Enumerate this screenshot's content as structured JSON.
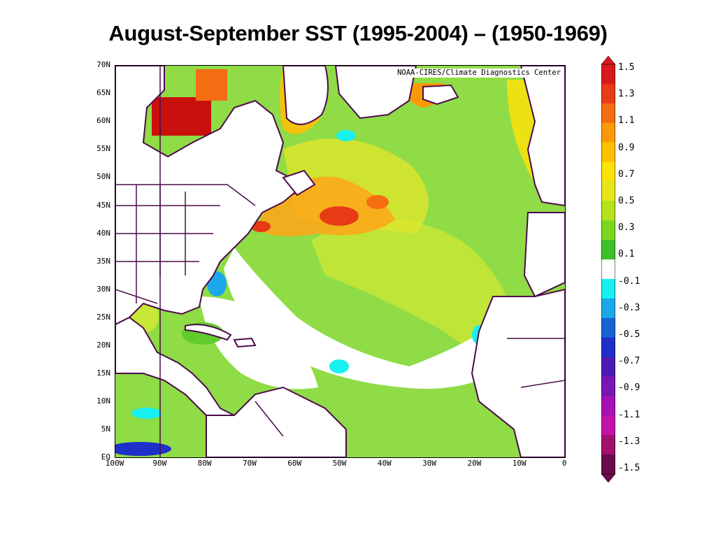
{
  "title": "August-September SST (1995-2004) – (1950-1969)",
  "credit": "NOAA-CIRES/Climate Diagnostics Center",
  "lat_labels": [
    "70N",
    "65N",
    "60N",
    "55N",
    "50N",
    "45N",
    "40N",
    "35N",
    "30N",
    "25N",
    "20N",
    "15N",
    "10N",
    "5N",
    "EQ"
  ],
  "lon_labels": [
    "100W",
    "90W",
    "80W",
    "70W",
    "60W",
    "50W",
    "40W",
    "30W",
    "20W",
    "10W",
    "0"
  ],
  "colorbar": {
    "ticks": [
      "1.5",
      "1.3",
      "1.1",
      "0.9",
      "0.7",
      "0.5",
      "0.3",
      "0.1",
      "-0.1",
      "-0.3",
      "-0.5",
      "-0.7",
      "-0.9",
      "-1.1",
      "-1.3",
      "-1.5"
    ],
    "colors": [
      "#d7191c",
      "#e83a14",
      "#f46d12",
      "#fb9a06",
      "#fdc003",
      "#fde20a",
      "#e6e61a",
      "#b6e21d",
      "#7bd61e",
      "#3cc228",
      "#ffffff",
      "#19f0f0",
      "#1aa8e8",
      "#1465d2",
      "#1f30c8",
      "#4b1ab4",
      "#7a16b4",
      "#a612b4",
      "#c312a8",
      "#a0106c",
      "#6a0a4a"
    ]
  },
  "colors": {
    "map_background": "#8fdc46",
    "land_outline": "#4b0a4b",
    "neutral": "#ffffff"
  }
}
